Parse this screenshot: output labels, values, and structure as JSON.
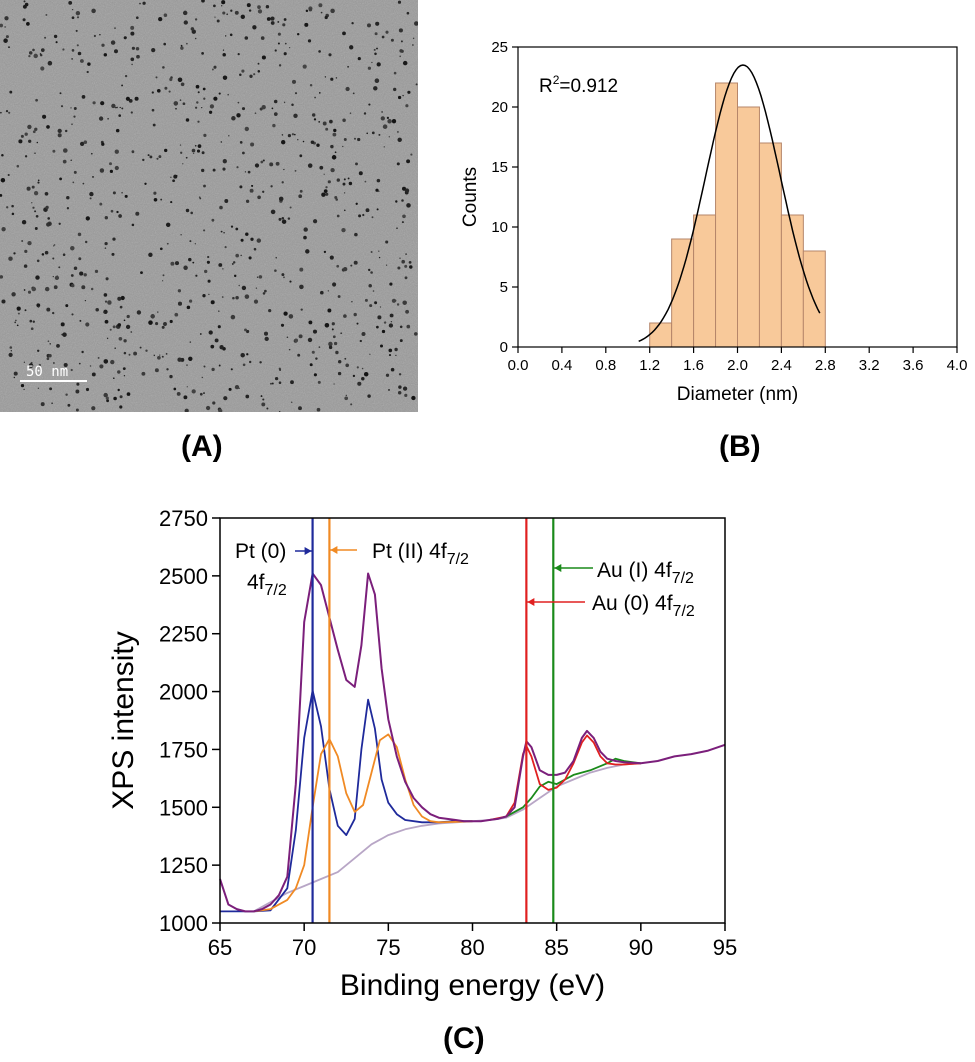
{
  "panels": {
    "a": {
      "label": "(A)",
      "scale_bar": "50 nm"
    },
    "b": {
      "label": "(B)"
    },
    "c": {
      "label": "(C)"
    }
  },
  "chart_data": [
    {
      "type": "bar",
      "panel": "B",
      "xlabel": "Diameter (nm)",
      "ylabel": "Counts",
      "xlim": [
        0.0,
        4.0
      ],
      "ylim": [
        0,
        25
      ],
      "xticks": [
        "0.0",
        "0.4",
        "0.8",
        "1.2",
        "1.6",
        "2.0",
        "2.4",
        "2.8",
        "3.2",
        "3.6",
        "4.0"
      ],
      "yticks": [
        "0",
        "5",
        "10",
        "15",
        "20",
        "25"
      ],
      "bin_edges": [
        1.2,
        1.4,
        1.6,
        1.8,
        2.0,
        2.2,
        2.4,
        2.6,
        2.8
      ],
      "values": [
        2,
        9,
        11,
        22,
        20,
        17,
        11,
        8
      ],
      "fit": {
        "type": "gaussian",
        "center": 2.05,
        "amplitude": 23.5,
        "sigma": 0.34,
        "x_range": [
          1.1,
          2.75
        ]
      },
      "annotation": {
        "base": "R",
        "sup": "2",
        "rest": "=0.912"
      },
      "bar_color": "#f8c99a",
      "bar_edge": "#b6866a"
    },
    {
      "type": "line",
      "panel": "C",
      "xlabel": "Binding energy (eV)",
      "ylabel": "XPS intensity",
      "xlim": [
        65,
        95
      ],
      "ylim": [
        1000,
        2750
      ],
      "xticks": [
        "65",
        "70",
        "75",
        "80",
        "85",
        "90",
        "95"
      ],
      "yticks": [
        "1000",
        "1250",
        "1500",
        "1750",
        "2000",
        "2250",
        "2500",
        "2750"
      ],
      "series": [
        {
          "role": "raw spectrum",
          "color": "#7b1f7b",
          "points": [
            [
              65,
              1190
            ],
            [
              65.5,
              1080
            ],
            [
              66,
              1060
            ],
            [
              66.5,
              1050
            ],
            [
              67,
              1050
            ],
            [
              67.5,
              1060
            ],
            [
              68,
              1080
            ],
            [
              68.5,
              1120
            ],
            [
              69,
              1200
            ],
            [
              69.5,
              1600
            ],
            [
              70,
              2300
            ],
            [
              70.5,
              2510
            ],
            [
              71,
              2460
            ],
            [
              71.5,
              2320
            ],
            [
              72,
              2180
            ],
            [
              72.5,
              2050
            ],
            [
              73,
              2020
            ],
            [
              73.4,
              2200
            ],
            [
              73.8,
              2510
            ],
            [
              74.2,
              2420
            ],
            [
              74.6,
              2100
            ],
            [
              75,
              1880
            ],
            [
              75.5,
              1720
            ],
            [
              76,
              1610
            ],
            [
              76.5,
              1540
            ],
            [
              77,
              1500
            ],
            [
              77.5,
              1470
            ],
            [
              78,
              1455
            ],
            [
              78.5,
              1450
            ],
            [
              79,
              1445
            ],
            [
              79.5,
              1440
            ],
            [
              80,
              1440
            ],
            [
              80.5,
              1440
            ],
            [
              81,
              1445
            ],
            [
              81.5,
              1450
            ],
            [
              82,
              1460
            ],
            [
              82.5,
              1500
            ],
            [
              83,
              1720
            ],
            [
              83.2,
              1785
            ],
            [
              83.5,
              1760
            ],
            [
              84,
              1660
            ],
            [
              84.5,
              1640
            ],
            [
              85,
              1640
            ],
            [
              85.5,
              1650
            ],
            [
              86,
              1700
            ],
            [
              86.5,
              1800
            ],
            [
              86.8,
              1830
            ],
            [
              87.2,
              1800
            ],
            [
              87.6,
              1740
            ],
            [
              88,
              1710
            ],
            [
              88.5,
              1700
            ],
            [
              89,
              1695
            ],
            [
              90,
              1690
            ],
            [
              91,
              1700
            ],
            [
              92,
              1720
            ],
            [
              93,
              1730
            ],
            [
              94,
              1745
            ],
            [
              95,
              1770
            ]
          ]
        },
        {
          "role": "Pt (0) component",
          "color": "#1f2a9b",
          "points": [
            [
              65,
              1050
            ],
            [
              67,
              1050
            ],
            [
              68,
              1055
            ],
            [
              69,
              1150
            ],
            [
              69.5,
              1400
            ],
            [
              70,
              1800
            ],
            [
              70.5,
              2005
            ],
            [
              71,
              1850
            ],
            [
              71.5,
              1580
            ],
            [
              72,
              1420
            ],
            [
              72.5,
              1380
            ],
            [
              73,
              1450
            ],
            [
              73.4,
              1750
            ],
            [
              73.8,
              1965
            ],
            [
              74.2,
              1840
            ],
            [
              74.6,
              1620
            ],
            [
              75,
              1520
            ],
            [
              75.5,
              1470
            ],
            [
              76,
              1445
            ],
            [
              77,
              1435
            ],
            [
              78,
              1435
            ],
            [
              79,
              1440
            ],
            [
              80,
              1440
            ]
          ]
        },
        {
          "role": "Pt (II) component",
          "color": "#f08a24",
          "points": [
            [
              67,
              1050
            ],
            [
              68,
              1060
            ],
            [
              69,
              1100
            ],
            [
              69.5,
              1150
            ],
            [
              70,
              1250
            ],
            [
              70.5,
              1500
            ],
            [
              71,
              1730
            ],
            [
              71.5,
              1795
            ],
            [
              72,
              1720
            ],
            [
              72.5,
              1560
            ],
            [
              73,
              1480
            ],
            [
              73.5,
              1510
            ],
            [
              74,
              1650
            ],
            [
              74.5,
              1790
            ],
            [
              75,
              1815
            ],
            [
              75.5,
              1760
            ],
            [
              76,
              1620
            ],
            [
              76.5,
              1510
            ],
            [
              77,
              1460
            ],
            [
              77.5,
              1440
            ],
            [
              78,
              1435
            ],
            [
              79,
              1437
            ],
            [
              80,
              1440
            ]
          ]
        },
        {
          "role": "background",
          "color": "#b8a6c6",
          "points": [
            [
              67,
              1050
            ],
            [
              68,
              1090
            ],
            [
              69,
              1130
            ],
            [
              70,
              1160
            ],
            [
              71,
              1190
            ],
            [
              72,
              1220
            ],
            [
              73,
              1280
            ],
            [
              74,
              1340
            ],
            [
              75,
              1380
            ],
            [
              76,
              1405
            ],
            [
              77,
              1420
            ],
            [
              78,
              1430
            ],
            [
              79,
              1435
            ],
            [
              80,
              1440
            ],
            [
              81,
              1445
            ],
            [
              82,
              1455
            ],
            [
              83,
              1490
            ],
            [
              84,
              1540
            ],
            [
              85,
              1590
            ],
            [
              86,
              1620
            ],
            [
              87,
              1650
            ],
            [
              88,
              1670
            ],
            [
              89,
              1685
            ],
            [
              90,
              1690
            ]
          ]
        },
        {
          "role": "Au (0) component",
          "color": "#e02020",
          "points": [
            [
              81,
              1445
            ],
            [
              82,
              1460
            ],
            [
              82.5,
              1520
            ],
            [
              83,
              1730
            ],
            [
              83.2,
              1765
            ],
            [
              83.5,
              1720
            ],
            [
              84,
              1600
            ],
            [
              84.5,
              1575
            ],
            [
              85,
              1585
            ],
            [
              85.5,
              1620
            ],
            [
              86,
              1690
            ],
            [
              86.5,
              1780
            ],
            [
              86.8,
              1810
            ],
            [
              87.2,
              1780
            ],
            [
              87.6,
              1720
            ],
            [
              88,
              1690
            ],
            [
              88.5,
              1685
            ],
            [
              89,
              1685
            ],
            [
              90,
              1690
            ]
          ]
        },
        {
          "role": "Au (I) component",
          "color": "#1a8a1a",
          "points": [
            [
              82,
              1460
            ],
            [
              83,
              1500
            ],
            [
              83.5,
              1540
            ],
            [
              84,
              1590
            ],
            [
              84.5,
              1610
            ],
            [
              85,
              1600
            ],
            [
              85.5,
              1620
            ],
            [
              86,
              1640
            ],
            [
              87,
              1660
            ],
            [
              88,
              1690
            ],
            [
              88.5,
              1710
            ],
            [
              89,
              1700
            ],
            [
              90,
              1690
            ]
          ]
        }
      ],
      "vlines": [
        {
          "x": 70.5,
          "color": "#1f2a9b"
        },
        {
          "x": 71.5,
          "color": "#f08a24"
        },
        {
          "x": 83.2,
          "color": "#e02020"
        },
        {
          "x": 84.8,
          "color": "#1a8a1a"
        }
      ],
      "annotations": [
        {
          "lines": [
            "Pt (0)",
            "4f"
          ],
          "sub": "7/2",
          "color": "#1f2a9b",
          "arrow_to_x": 70.5
        },
        {
          "text": "Pt (II) 4f",
          "sub": "7/2",
          "color": "#f08a24",
          "arrow_to_x": 71.5
        },
        {
          "text": "Au (I) 4f",
          "sub": "7/2",
          "color": "#1a8a1a",
          "arrow_to_x": 84.8
        },
        {
          "text": "Au (0) 4f",
          "sub": "7/2",
          "color": "#e02020",
          "arrow_to_x": 83.2
        }
      ]
    }
  ]
}
